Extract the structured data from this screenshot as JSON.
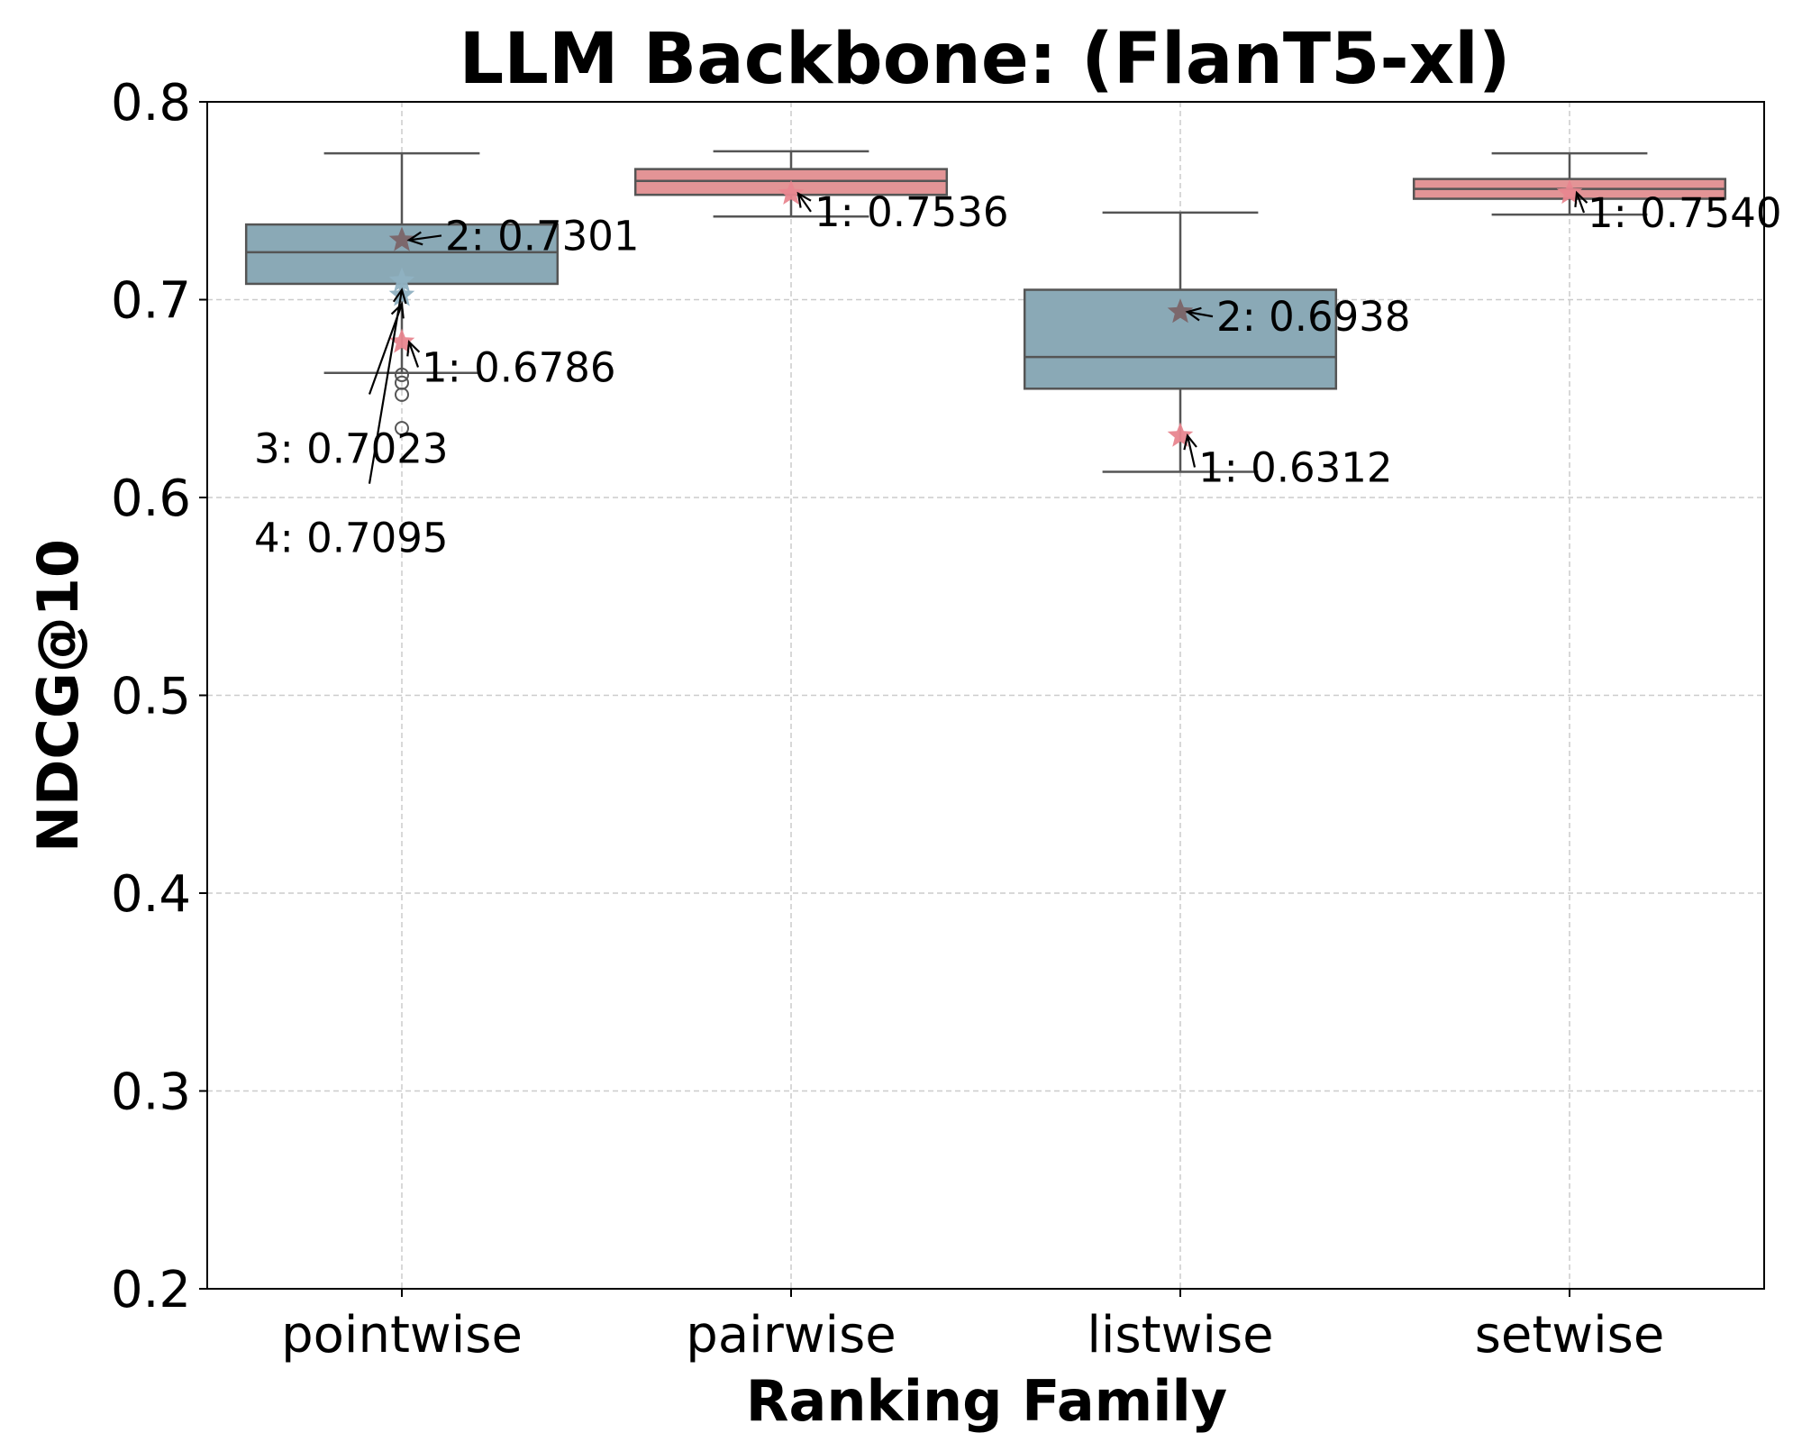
{
  "chart_data": {
    "type": "box",
    "title": "LLM Backbone: (FlanT5-xl)",
    "xlabel": "Ranking Family",
    "ylabel": "NDCG@10",
    "ylim": [
      0.2,
      0.8
    ],
    "yticks": [
      "0.2",
      "0.3",
      "0.4",
      "0.5",
      "0.6",
      "0.7",
      "0.8"
    ],
    "grid": true,
    "categories": [
      "pointwise",
      "pairwise",
      "listwise",
      "setwise"
    ],
    "boxes": [
      {
        "category": "pointwise",
        "color": "#8aa9b6",
        "whisker_low": 0.663,
        "q1": 0.708,
        "median": 0.724,
        "q3": 0.738,
        "whisker_high": 0.774,
        "outliers": [
          0.662,
          0.658,
          0.652,
          0.635
        ]
      },
      {
        "category": "pairwise",
        "color": "#e39496",
        "whisker_low": 0.742,
        "q1": 0.753,
        "median": 0.76,
        "q3": 0.766,
        "whisker_high": 0.775,
        "outliers": []
      },
      {
        "category": "listwise",
        "color": "#8aa9b6",
        "whisker_low": 0.613,
        "q1": 0.655,
        "median": 0.671,
        "q3": 0.705,
        "whisker_high": 0.744,
        "outliers": []
      },
      {
        "category": "setwise",
        "color": "#e39496",
        "whisker_low": 0.743,
        "q1": 0.751,
        "median": 0.756,
        "q3": 0.761,
        "whisker_high": 0.774,
        "outliers": []
      }
    ],
    "annotations": [
      {
        "category": "pointwise",
        "label": "2: 0.7301",
        "value": 0.7301,
        "star_color": "#7b6468"
      },
      {
        "category": "pointwise",
        "label": "1: 0.6786",
        "value": 0.6786,
        "star_color": "#e8868f"
      },
      {
        "category": "pointwise",
        "label": "3: 0.7023",
        "value": 0.7023,
        "star_color": "#8fb1c2"
      },
      {
        "category": "pointwise",
        "label": "4: 0.7095",
        "value": 0.7095,
        "star_color": "#8fb1c2"
      },
      {
        "category": "pairwise",
        "label": "1: 0.7536",
        "value": 0.7536,
        "star_color": "#e8868f"
      },
      {
        "category": "listwise",
        "label": "2: 0.6938",
        "value": 0.6938,
        "star_color": "#7b6468"
      },
      {
        "category": "listwise",
        "label": "1: 0.6312",
        "value": 0.6312,
        "star_color": "#e8868f"
      },
      {
        "category": "setwise",
        "label": "1: 0.7540",
        "value": 0.754,
        "star_color": "#e8868f"
      }
    ]
  }
}
